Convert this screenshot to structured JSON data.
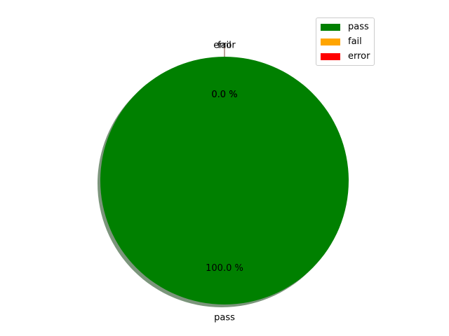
{
  "chart_data": {
    "type": "pie",
    "title": "",
    "slices": [
      {
        "label": "pass",
        "value": 100.0,
        "pct_label": "100.0 %",
        "color": "#008000"
      },
      {
        "label": "fail",
        "value": 0.0,
        "pct_label": "0.0 %",
        "color": "#FFA500"
      },
      {
        "label": "error",
        "value": 0.0,
        "pct_label": "0.0 %",
        "color": "#FF0000"
      }
    ],
    "shadow": true,
    "legend": {
      "position": "upper right",
      "entries": [
        {
          "label": "pass",
          "color": "#008000"
        },
        {
          "label": "fail",
          "color": "#FFA500"
        },
        {
          "label": "error",
          "color": "#FF0000"
        }
      ]
    }
  }
}
